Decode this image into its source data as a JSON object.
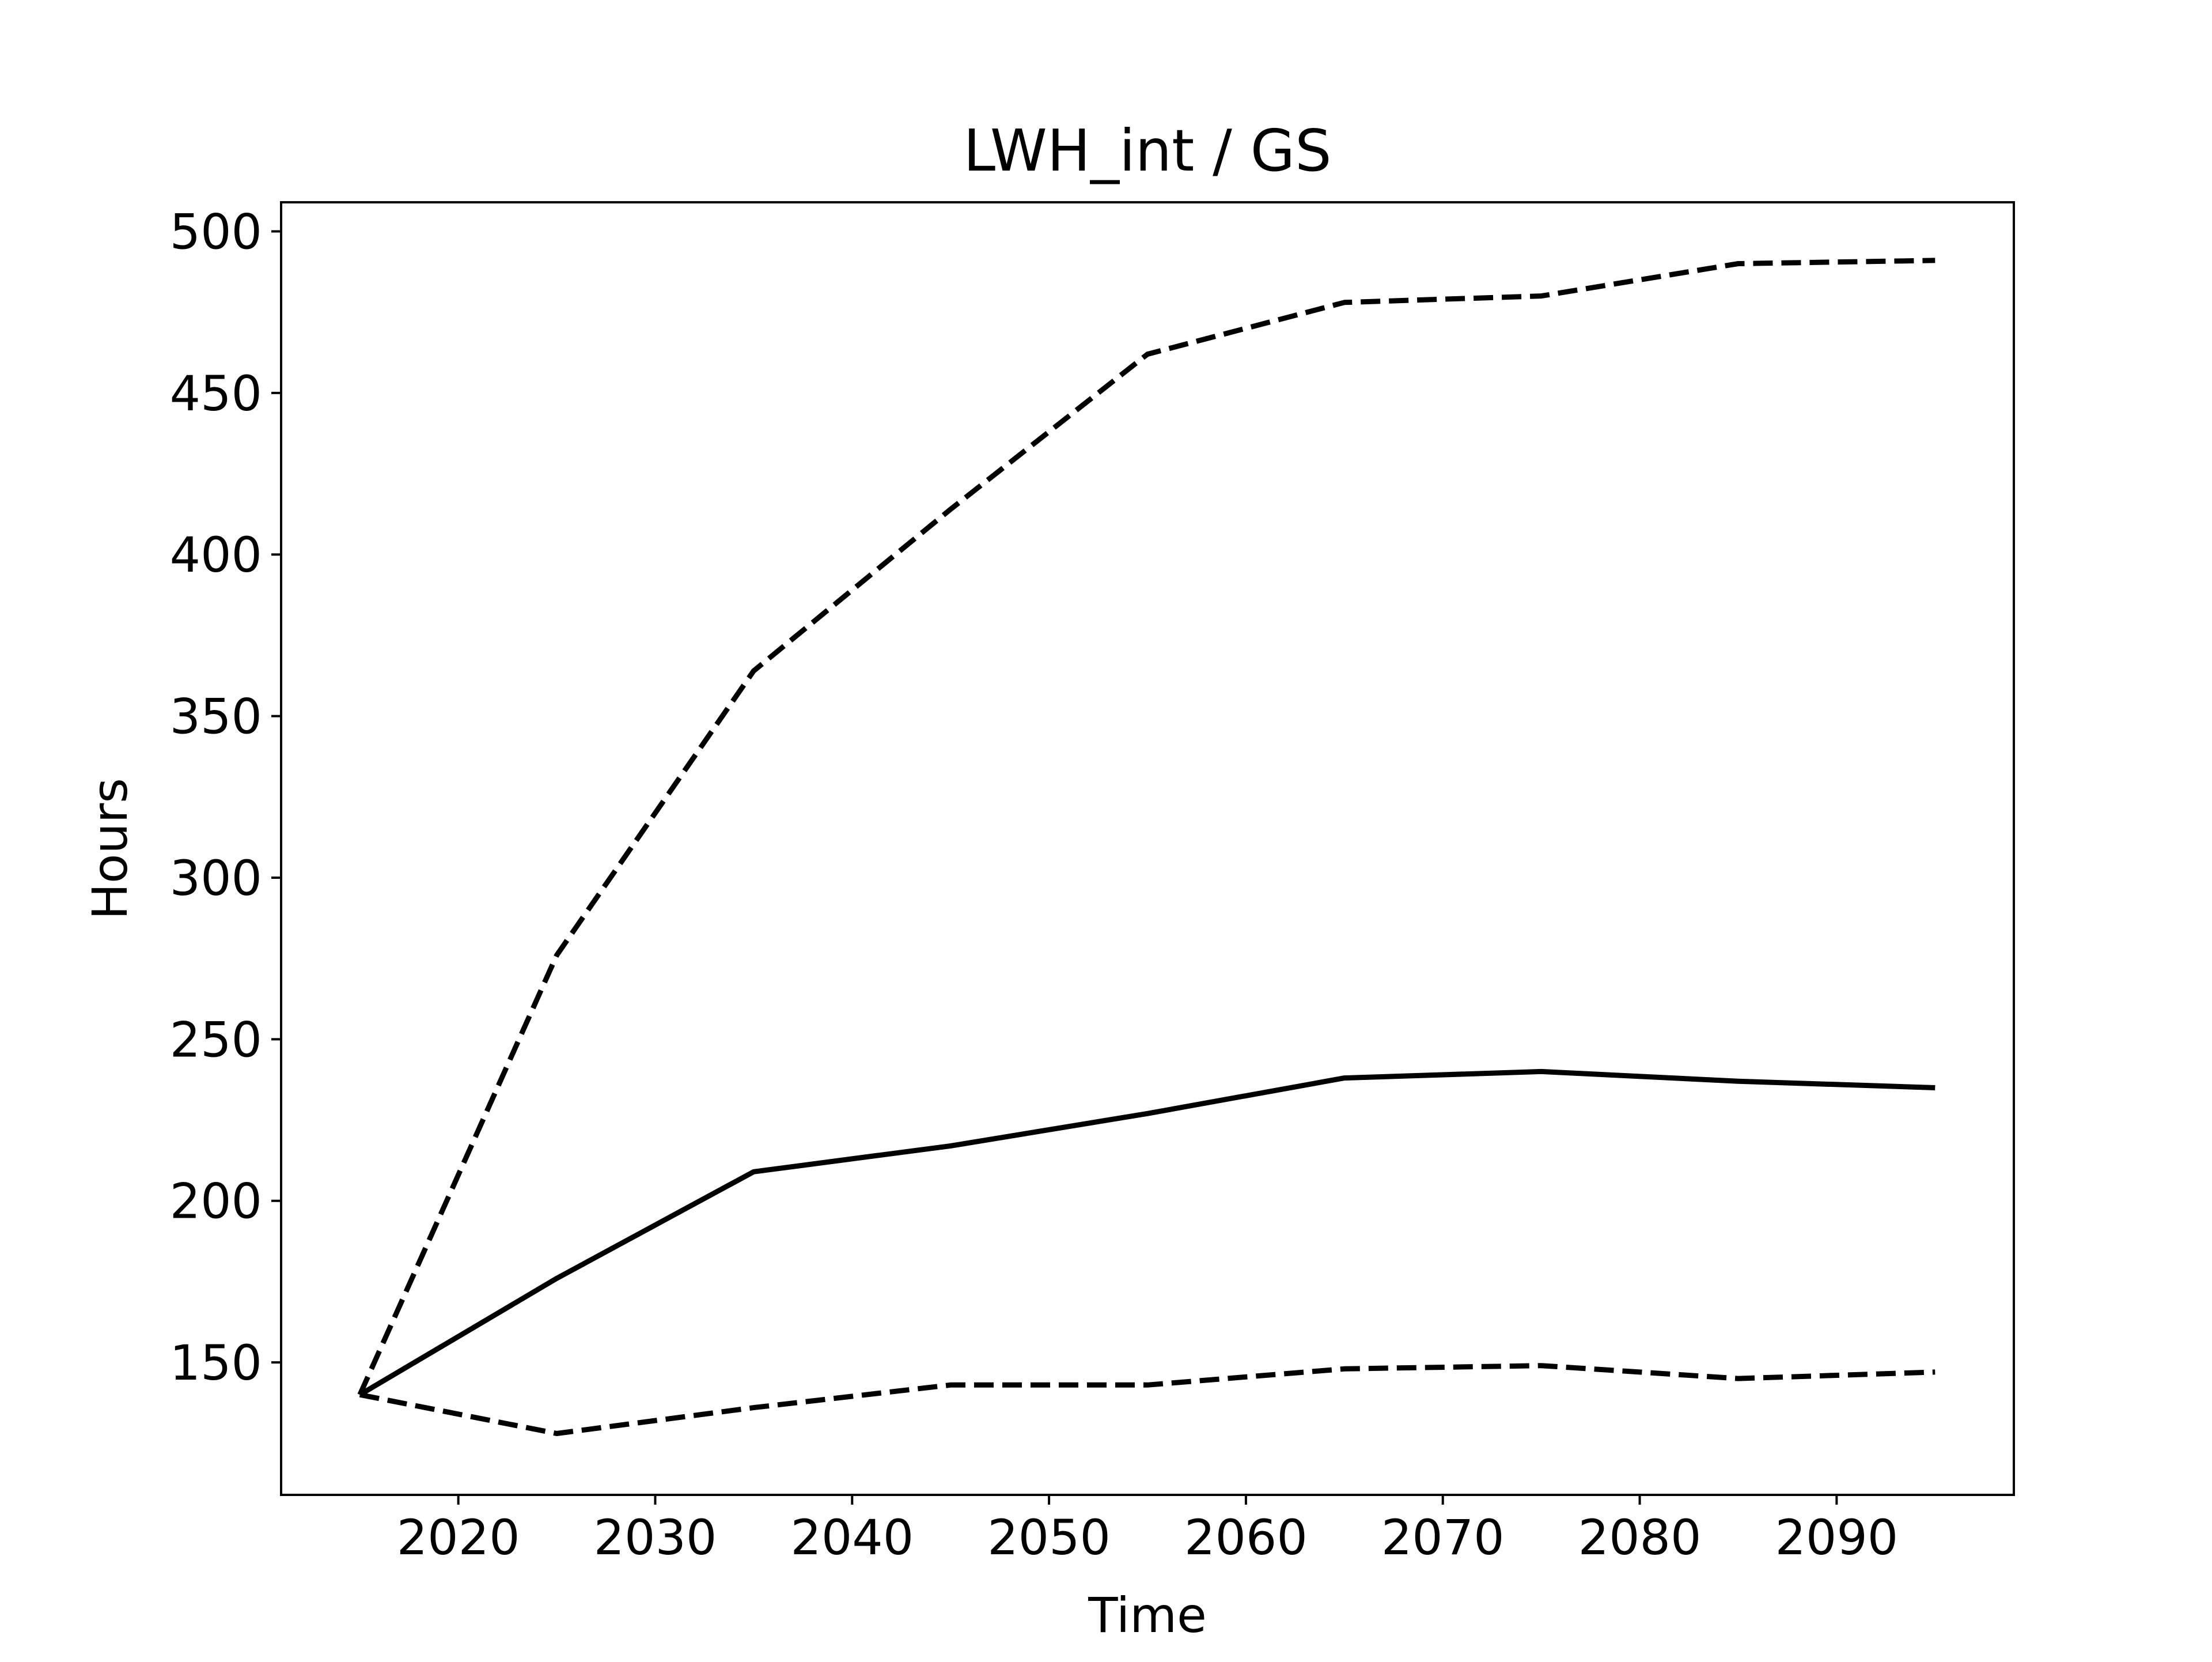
{
  "chart_data": {
    "type": "line",
    "title": "LWH_int / GS",
    "xlabel": "Time",
    "ylabel": "Hours",
    "xlim": [
      2011,
      2099
    ],
    "ylim": [
      109,
      509
    ],
    "xticks": [
      2020,
      2030,
      2040,
      2050,
      2060,
      2070,
      2080,
      2090
    ],
    "yticks": [
      150,
      200,
      250,
      300,
      350,
      400,
      450,
      500
    ],
    "grid": false,
    "legend": "none",
    "x": [
      2015,
      2025,
      2035,
      2045,
      2055,
      2065,
      2075,
      2085,
      2095
    ],
    "series": [
      {
        "style": "solid",
        "color": "#000000",
        "values": [
          140,
          176,
          209,
          217,
          227,
          238,
          240,
          237,
          235
        ]
      },
      {
        "style": "dashed",
        "color": "#000000",
        "values": [
          140,
          276,
          364,
          414,
          462,
          478,
          480,
          490,
          491
        ]
      },
      {
        "style": "dashed",
        "color": "#000000",
        "values": [
          140,
          128,
          136,
          143,
          143,
          148,
          149,
          145,
          147
        ]
      }
    ]
  }
}
